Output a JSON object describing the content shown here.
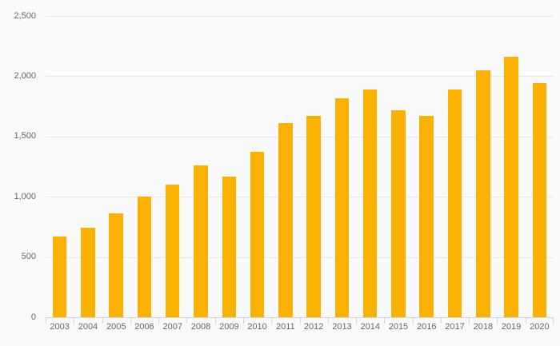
{
  "chart": {
    "background_color": "#fafafa",
    "bar_color": "#FBB100",
    "grid_color": "#e6e6e6",
    "axis_color": "#ccd6eb",
    "label_color": "#666666"
  },
  "chart_data": {
    "type": "bar",
    "title": "",
    "xlabel": "",
    "ylabel": "",
    "categories": [
      "2003",
      "2004",
      "2005",
      "2006",
      "2007",
      "2008",
      "2009",
      "2010",
      "2011",
      "2012",
      "2013",
      "2014",
      "2015",
      "2016",
      "2017",
      "2018",
      "2019",
      "2020"
    ],
    "values": [
      670,
      740,
      860,
      1000,
      1100,
      1260,
      1170,
      1370,
      1610,
      1670,
      1820,
      1890,
      1720,
      1670,
      1890,
      2050,
      2160,
      1940
    ],
    "ylim": [
      0,
      2500
    ],
    "yticks": [
      0,
      500,
      1000,
      1500,
      2000,
      2500
    ],
    "ytick_labels": [
      "0",
      "500",
      "1,000",
      "1,500",
      "2,000",
      "2,500"
    ],
    "grid": true,
    "legend": false,
    "legend_position": "none"
  }
}
